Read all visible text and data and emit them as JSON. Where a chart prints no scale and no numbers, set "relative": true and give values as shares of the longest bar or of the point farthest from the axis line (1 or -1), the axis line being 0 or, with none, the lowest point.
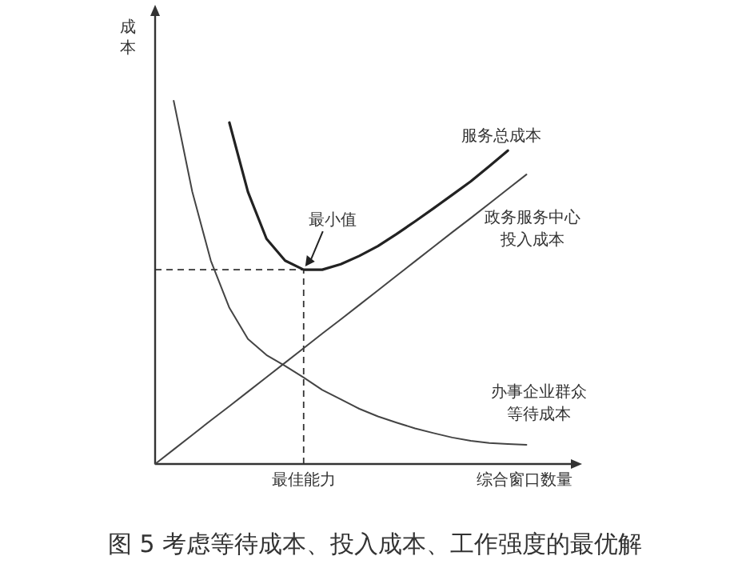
{
  "chart_data": {
    "type": "line",
    "relative": true,
    "xlabel": "综合窗口数量",
    "ylabel": "成本",
    "legend": false,
    "marker": "none",
    "line_style": "solid",
    "categories": [
      null,
      null,
      null,
      null,
      null,
      null,
      null,
      null,
      null,
      null,
      null,
      null,
      null,
      null,
      null,
      null,
      null,
      null,
      null,
      null,
      null
    ],
    "series": [
      {
        "name": "服务总成本",
        "color": "#222222",
        "values": [
          null,
          null,
          null,
          null,
          0.94,
          0.749,
          0.62,
          0.56,
          0.535,
          0.535,
          0.55,
          0.573,
          0.6,
          0.633,
          0.668,
          0.704,
          0.741,
          0.778,
          0.82,
          0.863,
          null
        ]
      },
      {
        "name": "政务服务中心投入成本",
        "color": "#444444",
        "values": [
          0,
          0.04,
          0.08,
          0.12,
          0.159,
          0.199,
          0.239,
          0.279,
          0.319,
          0.359,
          0.398,
          0.438,
          0.478,
          0.518,
          0.558,
          0.598,
          0.638,
          0.677,
          0.717,
          0.757,
          0.797
        ]
      },
      {
        "name": "办事企业群众等待成本",
        "color": "#444444",
        "values": [
          null,
          1.0,
          0.75,
          0.56,
          0.43,
          0.344,
          0.3,
          0.27,
          0.238,
          0.204,
          0.178,
          0.152,
          0.131,
          0.114,
          0.098,
          0.085,
          0.073,
          0.064,
          0.058,
          0.055,
          0.053
        ]
      }
    ],
    "ref_lines": [
      {
        "axis": "x",
        "label": "最佳能力",
        "line_style": "dashed"
      },
      {
        "axis": "y",
        "value": 0.535,
        "line_style": "dashed"
      }
    ],
    "annotations": [
      {
        "text": "最小值",
        "y": 0.535
      },
      "图 5 考虑等待成本、投入成本、工作强度的最优解"
    ]
  }
}
